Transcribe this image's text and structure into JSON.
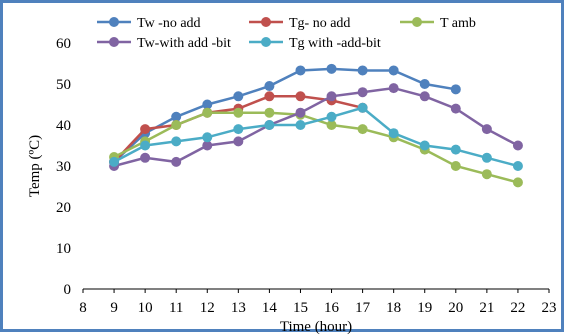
{
  "chart_data": {
    "type": "line",
    "title": "",
    "xlabel": "Time (hour)",
    "ylabel": "Temp (ºC)",
    "xlim": [
      8,
      23
    ],
    "ylim": [
      0,
      60
    ],
    "x_ticks": [
      "8",
      "9",
      "10",
      "11",
      "12",
      "13",
      "14",
      "15",
      "16",
      "17",
      "18",
      "19",
      "20",
      "21",
      "22",
      "23"
    ],
    "y_ticks": [
      "0",
      "10",
      "20",
      "30",
      "40",
      "50",
      "60"
    ],
    "grid": false,
    "legend_position": "top",
    "series": [
      {
        "name": "Tw -no add",
        "color": "#4f81bd",
        "points": [
          [
            9,
            31
          ],
          [
            10,
            38
          ],
          [
            11,
            42
          ],
          [
            12,
            45
          ],
          [
            13,
            47
          ],
          [
            14,
            49.5
          ],
          [
            15,
            53.3
          ],
          [
            16,
            53.7
          ],
          [
            17,
            53.3
          ],
          [
            18,
            53.3
          ],
          [
            19,
            50
          ],
          [
            20,
            48.7
          ]
        ]
      },
      {
        "name": "Tg- no add",
        "color": "#c0504d",
        "points": [
          [
            9,
            31
          ],
          [
            10,
            39
          ],
          [
            11,
            40
          ],
          [
            12,
            43
          ],
          [
            13,
            44
          ],
          [
            14,
            47
          ],
          [
            15,
            47
          ],
          [
            16,
            46
          ],
          [
            17,
            44.2
          ]
        ]
      },
      {
        "name": "T amb",
        "color": "#9bbb59",
        "points": [
          [
            9,
            32.2
          ],
          [
            10,
            36
          ],
          [
            11,
            40
          ],
          [
            12,
            43
          ],
          [
            13,
            43
          ],
          [
            14,
            43
          ],
          [
            15,
            42.5
          ],
          [
            16,
            40
          ],
          [
            17,
            39
          ],
          [
            18,
            37
          ],
          [
            19,
            34
          ],
          [
            20,
            30
          ],
          [
            21,
            28
          ],
          [
            22,
            26
          ]
        ]
      },
      {
        "name": "Tw-with add -bit",
        "color": "#8064a2",
        "points": [
          [
            9,
            30
          ],
          [
            10,
            32
          ],
          [
            11,
            31
          ],
          [
            12,
            35
          ],
          [
            13,
            36
          ],
          [
            14,
            40
          ],
          [
            15,
            43
          ],
          [
            16,
            47
          ],
          [
            17,
            48
          ],
          [
            18,
            49
          ],
          [
            19,
            47
          ],
          [
            20,
            44
          ],
          [
            21,
            39
          ],
          [
            22,
            35
          ]
        ]
      },
      {
        "name": "Tg with -add-bit",
        "color": "#4bacc6",
        "points": [
          [
            9,
            31
          ],
          [
            10,
            35
          ],
          [
            11,
            36
          ],
          [
            12,
            37
          ],
          [
            13,
            39
          ],
          [
            14,
            40
          ],
          [
            15,
            40
          ],
          [
            16,
            42
          ],
          [
            17,
            44.2
          ],
          [
            18,
            38
          ],
          [
            19,
            35
          ],
          [
            20,
            34
          ],
          [
            21,
            32
          ],
          [
            22,
            30
          ]
        ]
      }
    ]
  }
}
